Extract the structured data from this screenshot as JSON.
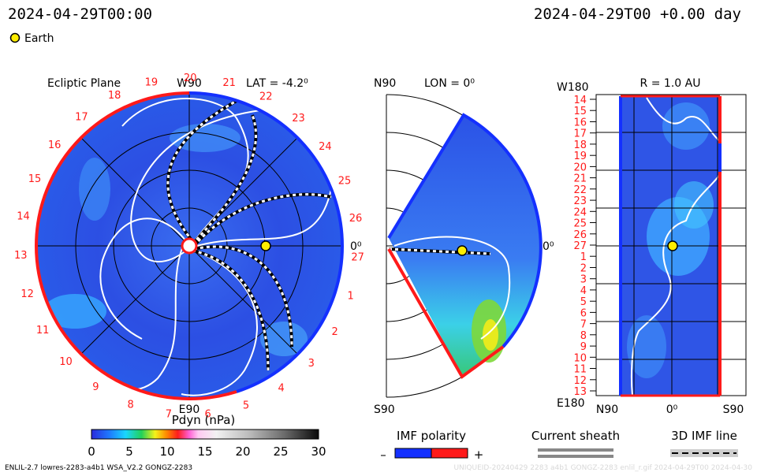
{
  "header": {
    "time_left": "2024-04-29T00:00",
    "time_right": "2024-04-29T00 +0.00 day",
    "legend_earth": "Earth"
  },
  "ecliptic": {
    "title": "Ecliptic Plane",
    "top_label": "W90",
    "lat_label": "LAT = -4.2⁰",
    "right_label": "0⁰",
    "bottom_label": "E90",
    "carrington_labels": [
      "19",
      "20",
      "21",
      "22",
      "23",
      "24",
      "25",
      "26",
      "27",
      "1",
      "2",
      "3",
      "4",
      "5",
      "6",
      "7",
      "8",
      "9",
      "10",
      "11",
      "12",
      "13",
      "14",
      "15",
      "16",
      "17",
      "18"
    ]
  },
  "meridional": {
    "lon_label": "LON = 0⁰",
    "top_label": "N90",
    "bottom_label": "S90",
    "right_label": "0⁰"
  },
  "r_panel": {
    "title": "R = 1.0 AU",
    "top_label": "W180",
    "bottom_label": "E180",
    "xlabels": [
      "N90",
      "0⁰",
      "S90"
    ],
    "carrington_labels": [
      "14",
      "15",
      "16",
      "17",
      "18",
      "19",
      "20",
      "21",
      "22",
      "23",
      "24",
      "25",
      "26",
      "27",
      "1",
      "2",
      "3",
      "4",
      "5",
      "6",
      "7",
      "8",
      "9",
      "10",
      "11",
      "12",
      "13"
    ]
  },
  "colorbar": {
    "title": "Pdyn (nPa)",
    "ticks": [
      "0",
      "5",
      "10",
      "15",
      "20",
      "25",
      "30"
    ],
    "range": [
      0,
      30
    ]
  },
  "legends": {
    "imf_title": "IMF polarity",
    "imf_minus": "–",
    "imf_plus": "+",
    "sheath_title": "Current sheath",
    "imf3d_title": "3D IMF line"
  },
  "footer": {
    "left": "ENLIL-2.7 lowres-2283-a4b1 WSA_V2.2 GONGZ-2283",
    "right": "UNIQUEID-20240429 2283 a4b1 GONGZ-2283 enlil_r.gif 2024-04-29T00 2024-04-30"
  },
  "colors": {
    "background_field": "#2f55e6",
    "polarity_negative": "#1430ff",
    "polarity_positive": "#ff1a1a",
    "earth": "#ffee00"
  }
}
